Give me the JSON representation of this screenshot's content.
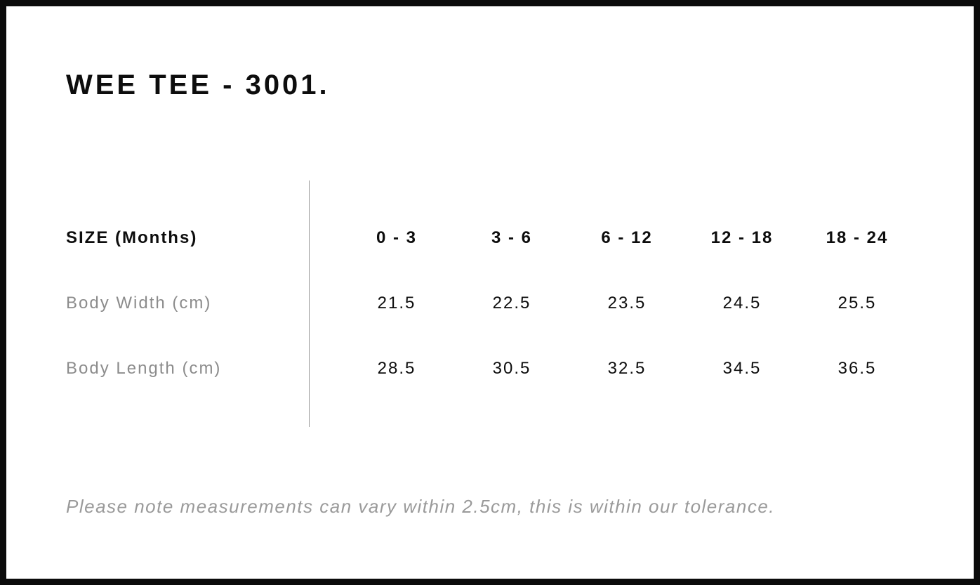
{
  "page": {
    "title": "WEE TEE - 3001.",
    "note": "Please note measurements can vary within 2.5cm, this is within our tolerance."
  },
  "colors": {
    "border": "#0b0b0b",
    "background": "#ffffff",
    "text_dark": "#0d0d0d",
    "label_gray": "#8c8c8c",
    "note_gray": "#9a9a9a",
    "divider_gray": "#9b9b9b"
  },
  "chart_data": {
    "type": "table",
    "title": "WEE TEE - 3001.",
    "columns": [
      "SIZE (Months)",
      "0 - 3",
      "3 - 6",
      "6 - 12",
      "12 - 18",
      "18 - 24"
    ],
    "rows": [
      {
        "label": "Body Width (cm)",
        "values": [
          "21.5",
          "22.5",
          "23.5",
          "24.5",
          "25.5"
        ]
      },
      {
        "label": "Body Length (cm)",
        "values": [
          "28.5",
          "30.5",
          "32.5",
          "34.5",
          "36.5"
        ]
      }
    ],
    "note": "Please note measurements can vary within 2.5cm, this is within our tolerance.",
    "layout_hints": {
      "label_column_align": "left",
      "value_columns_align": "center",
      "vertical_divider_between_labels_and_values": true
    }
  }
}
